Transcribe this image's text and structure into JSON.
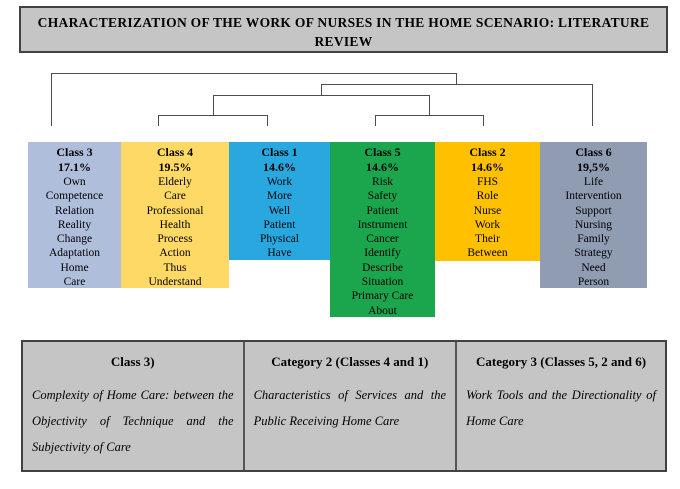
{
  "title": {
    "line1": "CHARACTERIZATION OF THE WORK OF NURSES IN THE HOME SCENARIO: LITERATURE",
    "line2": "REVIEW"
  },
  "classes": [
    {
      "name": "Class 3",
      "percent": "17.1%",
      "color": "#AFBEDB",
      "words": [
        "Own",
        "Competence",
        "Relation",
        "Reality",
        "Change",
        "Adaptation",
        "Home",
        "Care"
      ]
    },
    {
      "name": "Class 4",
      "percent": "19.5%",
      "color": "#FFD966",
      "words": [
        "Elderly",
        "Care",
        "Professional",
        "Health",
        "Process",
        "Action",
        "Thus",
        "Understand"
      ]
    },
    {
      "name": "Class 1",
      "percent": "14.6%",
      "color": "#29A8E0",
      "words": [
        "Work",
        "More",
        "Well",
        "Patient",
        "Physical",
        "Have"
      ]
    },
    {
      "name": "Class 5",
      "percent": "14.6%",
      "color": "#1BA64D",
      "words": [
        "Risk",
        "Safety",
        "Patient",
        "Instrument",
        "Cancer",
        "Identify",
        "Describe",
        "Situation",
        "Primary Care",
        "About"
      ]
    },
    {
      "name": "Class 2",
      "percent": "14.6%",
      "color": "#FFC000",
      "words": [
        "FHS",
        "Role",
        "Nurse",
        "Work",
        "Their",
        "Between"
      ]
    },
    {
      "name": "Class 6",
      "percent": "19,5%",
      "color": "#8F9CB2",
      "words": [
        "Life",
        "Intervention",
        "Support",
        "Nursing",
        "Family",
        "Strategy",
        "Need",
        "Person"
      ]
    }
  ],
  "categories_table": {
    "columns": [
      {
        "header": "Class 3)",
        "body": "Complexity of Home Care: between the Objectivity of Technique and the Subjectivity of Care"
      },
      {
        "header": "Category 2 (Classes 4 and 1)",
        "body": "Characteristics of Services and the Public Receiving Home Care"
      },
      {
        "header": "Category 3 (Classes 5, 2 and 6)",
        "body": "Work Tools and the Directionality of Home Care"
      }
    ]
  },
  "colors": {
    "panel_gray": "#C5C5C5",
    "border_dark": "#424242",
    "dendrogram_line": "#4D4D4D"
  }
}
